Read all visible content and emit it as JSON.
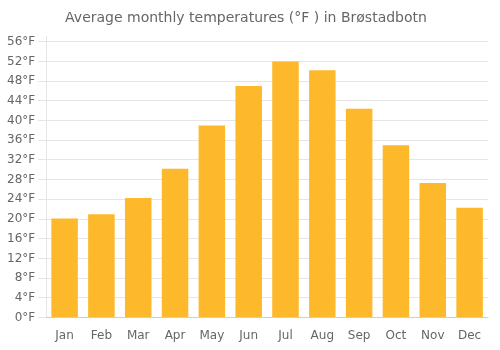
{
  "chart_data": {
    "type": "bar",
    "title": "Average monthly temperatures (°F ) in Brøstadbotn",
    "categories": [
      "Jan",
      "Feb",
      "Mar",
      "Apr",
      "May",
      "Jun",
      "Jul",
      "Aug",
      "Sep",
      "Oct",
      "Nov",
      "Dec"
    ],
    "values": [
      20.1,
      21.0,
      24.3,
      30.2,
      39.0,
      47.0,
      52.0,
      50.2,
      42.4,
      35.0,
      27.3,
      22.3
    ],
    "color": "#FDB92B",
    "ylim": [
      0,
      57
    ],
    "yticks": [
      {
        "value": 0,
        "label": "0°F"
      },
      {
        "value": 4,
        "label": "4°F"
      },
      {
        "value": 8,
        "label": "8°F"
      },
      {
        "value": 12,
        "label": "12°F"
      },
      {
        "value": 16,
        "label": "16°F"
      },
      {
        "value": 20,
        "label": "20°F"
      },
      {
        "value": 24,
        "label": "24°F"
      },
      {
        "value": 28,
        "label": "28°F"
      },
      {
        "value": 32,
        "label": "32°F"
      },
      {
        "value": 36,
        "label": "36°F"
      },
      {
        "value": 40,
        "label": "40°F"
      },
      {
        "value": 44,
        "label": "44°F"
      },
      {
        "value": 48,
        "label": "48°F"
      },
      {
        "value": 52,
        "label": "52°F"
      },
      {
        "value": 56,
        "label": "56°F"
      }
    ],
    "grid": true
  }
}
